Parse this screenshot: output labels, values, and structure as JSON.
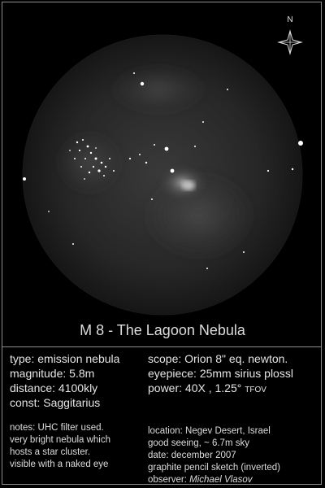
{
  "compass": {
    "north_label": "N"
  },
  "title": "M 8 - The Lagoon Nebula",
  "info_left": {
    "type": "type: emission nebula",
    "magnitude": "magnitude: 5.8m",
    "distance": "distance: 4100kly",
    "constellation": "const: Saggitarius"
  },
  "info_right": {
    "scope": "scope: Orion 8\" eq. newton.",
    "eyepiece": "eyepiece: 25mm sirius plossl",
    "power": "power: 40X , 1.25°",
    "tfov": "TFOV"
  },
  "notes": [
    "notes: UHC filter used.",
    "very bright nebula which",
    "hosts a star cluster.",
    "visible with a naked eye"
  ],
  "details": {
    "location": "location: Negev Desert, Israel",
    "seeing": "good seeing, ~ 6.7m sky",
    "date": "date: december 2007",
    "medium": "graphite pencil sketch (inverted)",
    "observer_label": "observer:",
    "observer_name": "Michael Vlasov"
  }
}
